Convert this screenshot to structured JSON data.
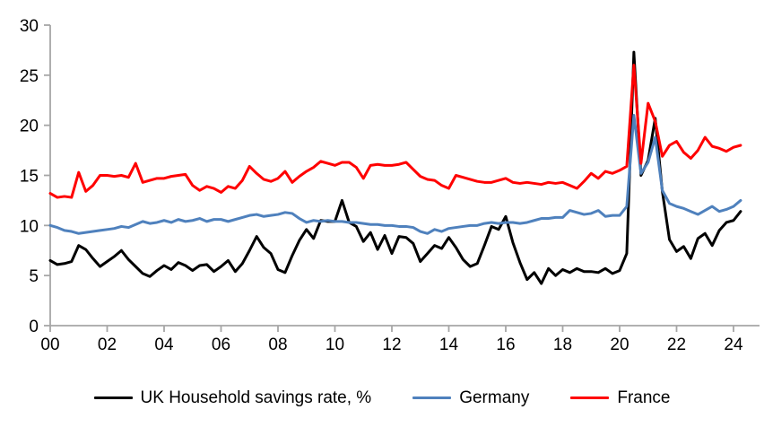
{
  "chart_data": {
    "type": "line",
    "title": "",
    "xlabel": "",
    "ylabel": "",
    "grid": false,
    "legend_position": "bottom",
    "x_start": 2000,
    "x_step": 0.25,
    "x_axis_ticks": [
      {
        "year": 2000,
        "label": "00"
      },
      {
        "year": 2002,
        "label": "02"
      },
      {
        "year": 2004,
        "label": "04"
      },
      {
        "year": 2006,
        "label": "06"
      },
      {
        "year": 2008,
        "label": "08"
      },
      {
        "year": 2010,
        "label": "10"
      },
      {
        "year": 2012,
        "label": "12"
      },
      {
        "year": 2014,
        "label": "14"
      },
      {
        "year": 2016,
        "label": "16"
      },
      {
        "year": 2018,
        "label": "18"
      },
      {
        "year": 2020,
        "label": "20"
      },
      {
        "year": 2022,
        "label": "22"
      },
      {
        "year": 2024,
        "label": "24"
      }
    ],
    "y_ticks": [
      0,
      5,
      10,
      15,
      20,
      25,
      30
    ],
    "ylim": [
      0,
      30
    ],
    "series": [
      {
        "id": "uk",
        "name": "UK Household savings rate, %",
        "color": "#000000",
        "values": [
          6.5,
          6.1,
          6.2,
          6.4,
          8.0,
          7.6,
          6.7,
          5.9,
          6.4,
          6.9,
          7.5,
          6.6,
          5.9,
          5.2,
          4.9,
          5.5,
          6.0,
          5.6,
          6.3,
          6.0,
          5.5,
          6.0,
          6.1,
          5.4,
          5.9,
          6.5,
          5.4,
          6.2,
          7.5,
          8.9,
          7.8,
          7.2,
          5.6,
          5.3,
          7.0,
          8.5,
          9.6,
          8.7,
          10.5,
          10.4,
          10.4,
          12.5,
          10.3,
          9.9,
          8.4,
          9.3,
          7.6,
          9.0,
          7.2,
          8.9,
          8.8,
          8.2,
          6.4,
          7.2,
          8.0,
          7.7,
          8.8,
          7.8,
          6.6,
          5.9,
          6.2,
          8.0,
          9.9,
          9.6,
          10.9,
          8.3,
          6.3,
          4.6,
          5.3,
          4.2,
          5.7,
          5.0,
          5.6,
          5.3,
          5.7,
          5.4,
          5.4,
          5.3,
          5.7,
          5.2,
          5.5,
          7.2,
          27.3,
          15.0,
          16.5,
          20.7,
          13.4,
          8.6,
          7.4,
          7.9,
          6.7,
          8.7,
          9.2,
          8.0,
          9.5,
          10.3,
          10.5,
          11.4
        ]
      },
      {
        "id": "germany",
        "name": "Germany",
        "color": "#4f81bd",
        "values": [
          10.0,
          9.8,
          9.5,
          9.4,
          9.2,
          9.3,
          9.4,
          9.5,
          9.6,
          9.7,
          9.9,
          9.8,
          10.1,
          10.4,
          10.2,
          10.3,
          10.5,
          10.3,
          10.6,
          10.4,
          10.5,
          10.7,
          10.4,
          10.6,
          10.6,
          10.4,
          10.6,
          10.8,
          11.0,
          11.1,
          10.9,
          11.0,
          11.1,
          11.3,
          11.2,
          10.7,
          10.3,
          10.5,
          10.4,
          10.5,
          10.4,
          10.4,
          10.3,
          10.3,
          10.2,
          10.1,
          10.1,
          10.0,
          10.0,
          9.9,
          9.9,
          9.8,
          9.4,
          9.2,
          9.6,
          9.4,
          9.7,
          9.8,
          9.9,
          10.0,
          10.0,
          10.2,
          10.3,
          10.2,
          10.3,
          10.3,
          10.2,
          10.3,
          10.5,
          10.7,
          10.7,
          10.8,
          10.8,
          11.5,
          11.3,
          11.1,
          11.2,
          11.5,
          10.9,
          11.0,
          11.0,
          11.9,
          21.0,
          15.2,
          16.3,
          18.8,
          13.5,
          12.2,
          11.9,
          11.7,
          11.4,
          11.1,
          11.5,
          11.9,
          11.4,
          11.6,
          11.9,
          12.5
        ]
      },
      {
        "id": "france",
        "name": "France",
        "color": "#ff0000",
        "values": [
          13.2,
          12.8,
          12.9,
          12.8,
          15.3,
          13.4,
          14.0,
          15.0,
          15.0,
          14.9,
          15.0,
          14.8,
          16.2,
          14.3,
          14.5,
          14.7,
          14.7,
          14.9,
          15.0,
          15.1,
          14.0,
          13.5,
          13.9,
          13.7,
          13.3,
          13.9,
          13.7,
          14.5,
          15.9,
          15.2,
          14.6,
          14.4,
          14.7,
          15.4,
          14.3,
          14.9,
          15.4,
          15.8,
          16.4,
          16.2,
          16.0,
          16.3,
          16.3,
          15.8,
          14.7,
          16.0,
          16.1,
          16.0,
          16.0,
          16.1,
          16.3,
          15.6,
          14.9,
          14.6,
          14.5,
          14.0,
          13.7,
          15.0,
          14.8,
          14.6,
          14.4,
          14.3,
          14.3,
          14.5,
          14.7,
          14.3,
          14.2,
          14.3,
          14.2,
          14.1,
          14.3,
          14.2,
          14.3,
          14.0,
          13.7,
          14.4,
          15.2,
          14.7,
          15.4,
          15.2,
          15.5,
          15.9,
          26.0,
          16.2,
          22.2,
          20.4,
          16.9,
          18.0,
          18.4,
          17.3,
          16.7,
          17.5,
          18.8,
          17.9,
          17.7,
          17.4,
          17.8,
          18.0
        ]
      }
    ]
  },
  "colors": {
    "axis": "#a6a6a6",
    "text": "#000000",
    "background": "#ffffff"
  },
  "legend": {
    "items": [
      {
        "id": "uk",
        "label": "UK Household savings rate, %",
        "color": "#000000"
      },
      {
        "id": "germany",
        "label": "Germany",
        "color": "#4f81bd"
      },
      {
        "id": "france",
        "label": "France",
        "color": "#ff0000"
      }
    ]
  }
}
